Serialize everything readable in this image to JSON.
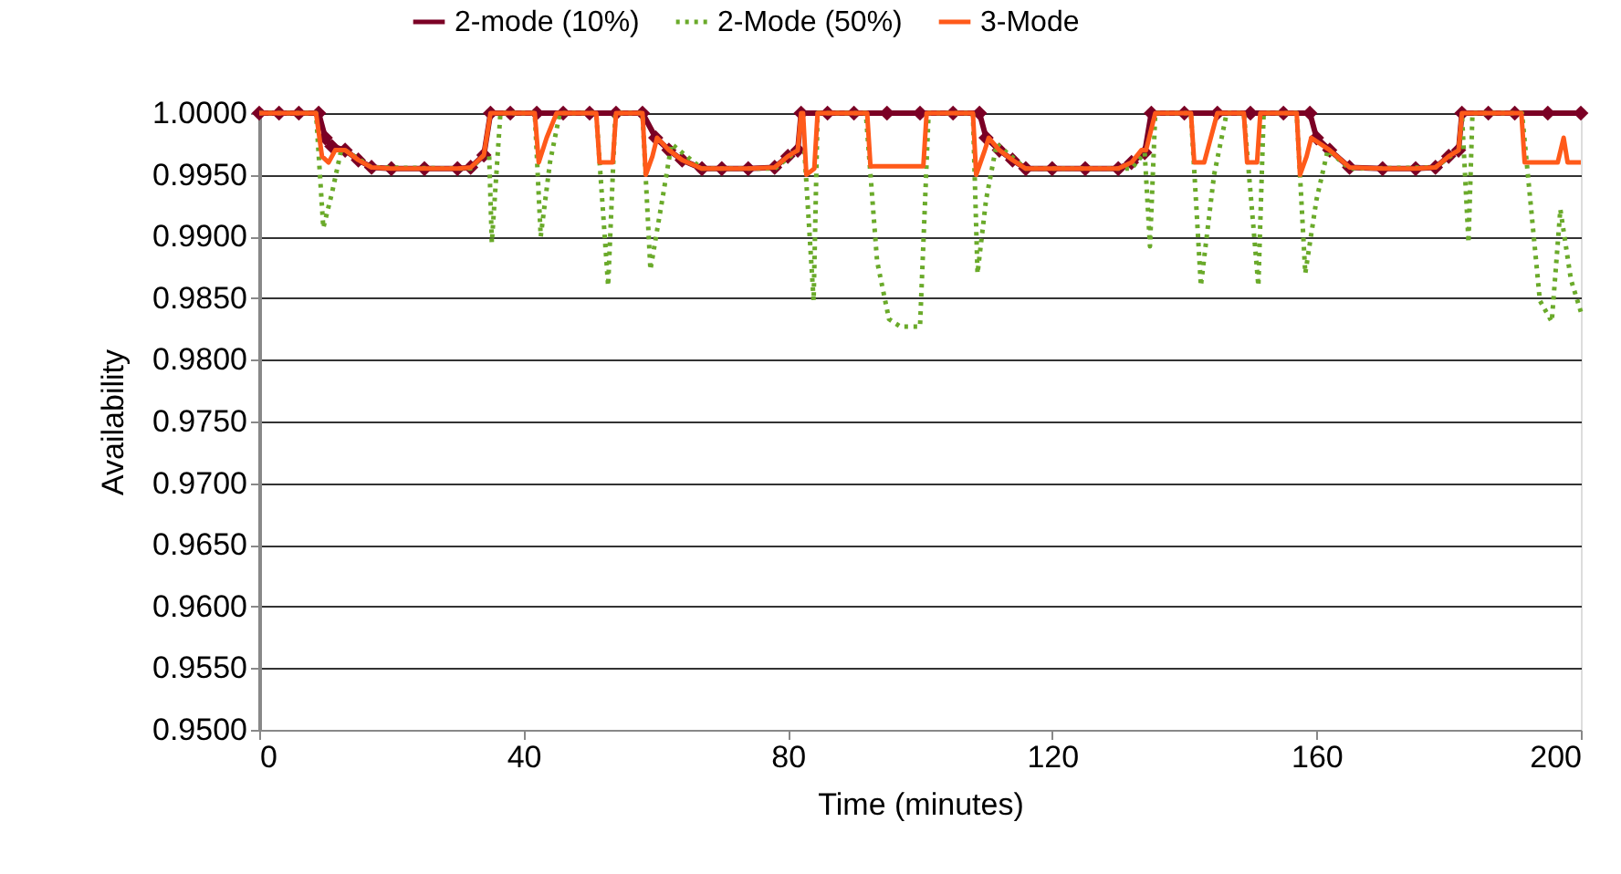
{
  "chart_data": {
    "type": "line",
    "xlabel": "Time (minutes)",
    "ylabel": "Availability",
    "xlim": [
      0,
      200
    ],
    "xticks": [
      0,
      40,
      80,
      120,
      160,
      200
    ],
    "ylim": [
      0.95,
      1.0
    ],
    "yticks": [
      {
        "value": 0.95,
        "label": "0.9500"
      },
      {
        "value": 0.955,
        "label": "0.9550"
      },
      {
        "value": 0.96,
        "label": "0.9600"
      },
      {
        "value": 0.965,
        "label": "0.9650"
      },
      {
        "value": 0.97,
        "label": "0.9700"
      },
      {
        "value": 0.975,
        "label": "0.9750"
      },
      {
        "value": 0.98,
        "label": "0.9800"
      },
      {
        "value": 0.985,
        "label": "0.9850"
      },
      {
        "value": 0.99,
        "label": "0.9900"
      },
      {
        "value": 0.995,
        "label": "0.9950"
      },
      {
        "value": 1.0,
        "label": "1.0000"
      }
    ],
    "grid": "y",
    "legend": "top",
    "series": [
      {
        "name": "2-mode (10%)",
        "color": "#7b0025",
        "marker": "diamond",
        "line_style": "solid",
        "x": [
          0,
          3,
          6,
          9,
          10,
          11,
          13,
          15,
          17,
          20,
          25,
          30,
          32,
          34,
          35,
          38,
          42,
          46,
          50,
          54,
          58,
          60,
          62,
          64,
          67,
          70,
          74,
          78,
          80,
          81.5,
          82,
          86,
          90,
          95,
          100,
          105,
          109,
          110,
          112,
          114,
          116,
          120,
          125,
          130,
          132,
          134,
          135,
          140,
          145,
          150,
          155,
          159,
          160,
          162,
          165,
          170,
          175,
          178,
          180,
          181.5,
          182,
          186,
          190,
          195,
          200
        ],
        "values": [
          1.0,
          1.0,
          1.0,
          1.0,
          0.998,
          0.9973,
          0.997,
          0.9962,
          0.9956,
          0.9955,
          0.9955,
          0.9955,
          0.9956,
          0.9966,
          1.0,
          1.0,
          1.0,
          1.0,
          1.0,
          1.0,
          1.0,
          0.998,
          0.997,
          0.9962,
          0.9955,
          0.9955,
          0.9955,
          0.9956,
          0.9965,
          0.997,
          1.0,
          1.0,
          1.0,
          1.0,
          1.0,
          1.0,
          1.0,
          0.998,
          0.997,
          0.9962,
          0.9955,
          0.9955,
          0.9955,
          0.9955,
          0.996,
          0.9968,
          1.0,
          1.0,
          1.0,
          1.0,
          1.0,
          1.0,
          0.998,
          0.997,
          0.9956,
          0.9955,
          0.9955,
          0.9956,
          0.9965,
          0.997,
          1.0,
          1.0,
          1.0,
          1.0,
          1.0
        ]
      },
      {
        "name": "2-Mode (50%)",
        "color": "#6aaa2a",
        "line_style": "dotted",
        "x": [
          0,
          8.6,
          9.7,
          11,
          12.4,
          13,
          17,
          32,
          34,
          34.8,
          35.2,
          36.5,
          41.7,
          42.6,
          44,
          45.5,
          51,
          52.8,
          53.9,
          58,
          59.2,
          61,
          62.4,
          67,
          78,
          81.5,
          82.5,
          83.9,
          84.5,
          91.8,
          93.5,
          95.3,
          97,
          100,
          101.3,
          108,
          108.7,
          110,
          111.6,
          116,
          132,
          134,
          134.8,
          135.6,
          141,
          142.5,
          144.5,
          146.4,
          149,
          151.2,
          152,
          157,
          158.3,
          160,
          161.7,
          165,
          178,
          181.5,
          182,
          183,
          183.6,
          191.1,
          193.8,
          195.6,
          196.9,
          198.5,
          200
        ],
        "values": [
          1.0,
          1.0,
          0.9907,
          0.9935,
          0.997,
          0.997,
          0.9956,
          0.9955,
          0.9966,
          0.9965,
          0.9895,
          1.0,
          1.0,
          0.99,
          0.996,
          1.0,
          1.0,
          0.986,
          1.0,
          1.0,
          0.9873,
          0.993,
          0.9975,
          0.9955,
          0.9955,
          0.997,
          0.997,
          0.9848,
          1.0,
          1.0,
          0.988,
          0.9833,
          0.9827,
          0.9827,
          1.0,
          1.0,
          0.987,
          0.993,
          0.9975,
          0.9955,
          0.9955,
          0.9968,
          0.9892,
          1.0,
          1.0,
          0.986,
          0.995,
          1.0,
          1.0,
          0.986,
          1.0,
          1.0,
          0.987,
          0.993,
          0.997,
          0.9955,
          0.9956,
          0.997,
          1.0,
          0.9895,
          1.0,
          1.0,
          0.9848,
          0.9831,
          0.9922,
          0.9865,
          0.9839
        ]
      },
      {
        "name": "3-Mode",
        "color": "#ff5a1a",
        "line_style": "solid",
        "x": [
          0,
          8.6,
          9.5,
          10.5,
          11.5,
          13,
          15,
          17,
          20,
          25,
          30,
          32,
          34,
          35,
          41.7,
          42.3,
          43.5,
          45,
          51,
          51.5,
          53.5,
          54,
          58,
          58.5,
          59.5,
          60.2,
          62,
          64,
          67,
          70,
          74,
          78,
          80,
          81.5,
          82,
          82.3,
          82.8,
          84,
          84.5,
          92,
          92.5,
          100.5,
          101,
          108,
          108.5,
          109.8,
          110.4,
          112,
          114,
          116,
          120,
          125,
          130,
          132,
          133.5,
          134.2,
          135.6,
          141,
          141.5,
          143,
          145,
          149,
          149.5,
          151,
          151.5,
          157,
          157.5,
          158.5,
          159.2,
          162,
          165,
          170,
          175,
          178,
          180,
          181.5,
          182,
          191,
          191.5,
          196.5,
          197.4,
          198,
          200
        ],
        "values": [
          1.0,
          1.0,
          0.9965,
          0.996,
          0.997,
          0.997,
          0.9962,
          0.9956,
          0.9955,
          0.9955,
          0.9955,
          0.9956,
          0.9966,
          1.0,
          1.0,
          0.996,
          0.998,
          1.0,
          1.0,
          0.996,
          0.996,
          1.0,
          1.0,
          0.995,
          0.9965,
          0.998,
          0.997,
          0.9962,
          0.9955,
          0.9955,
          0.9955,
          0.9956,
          0.9965,
          0.997,
          1.0,
          1.0,
          0.995,
          0.9955,
          1.0,
          1.0,
          0.9957,
          0.9957,
          1.0,
          1.0,
          0.995,
          0.997,
          0.998,
          0.997,
          0.9962,
          0.9955,
          0.9955,
          0.9955,
          0.9955,
          0.996,
          0.997,
          0.997,
          1.0,
          1.0,
          0.996,
          0.996,
          1.0,
          1.0,
          0.996,
          0.996,
          1.0,
          1.0,
          0.995,
          0.9965,
          0.998,
          0.997,
          0.9956,
          0.9955,
          0.9955,
          0.9956,
          0.9965,
          0.997,
          1.0,
          1.0,
          0.996,
          0.996,
          0.998,
          0.996,
          0.996
        ]
      }
    ]
  }
}
